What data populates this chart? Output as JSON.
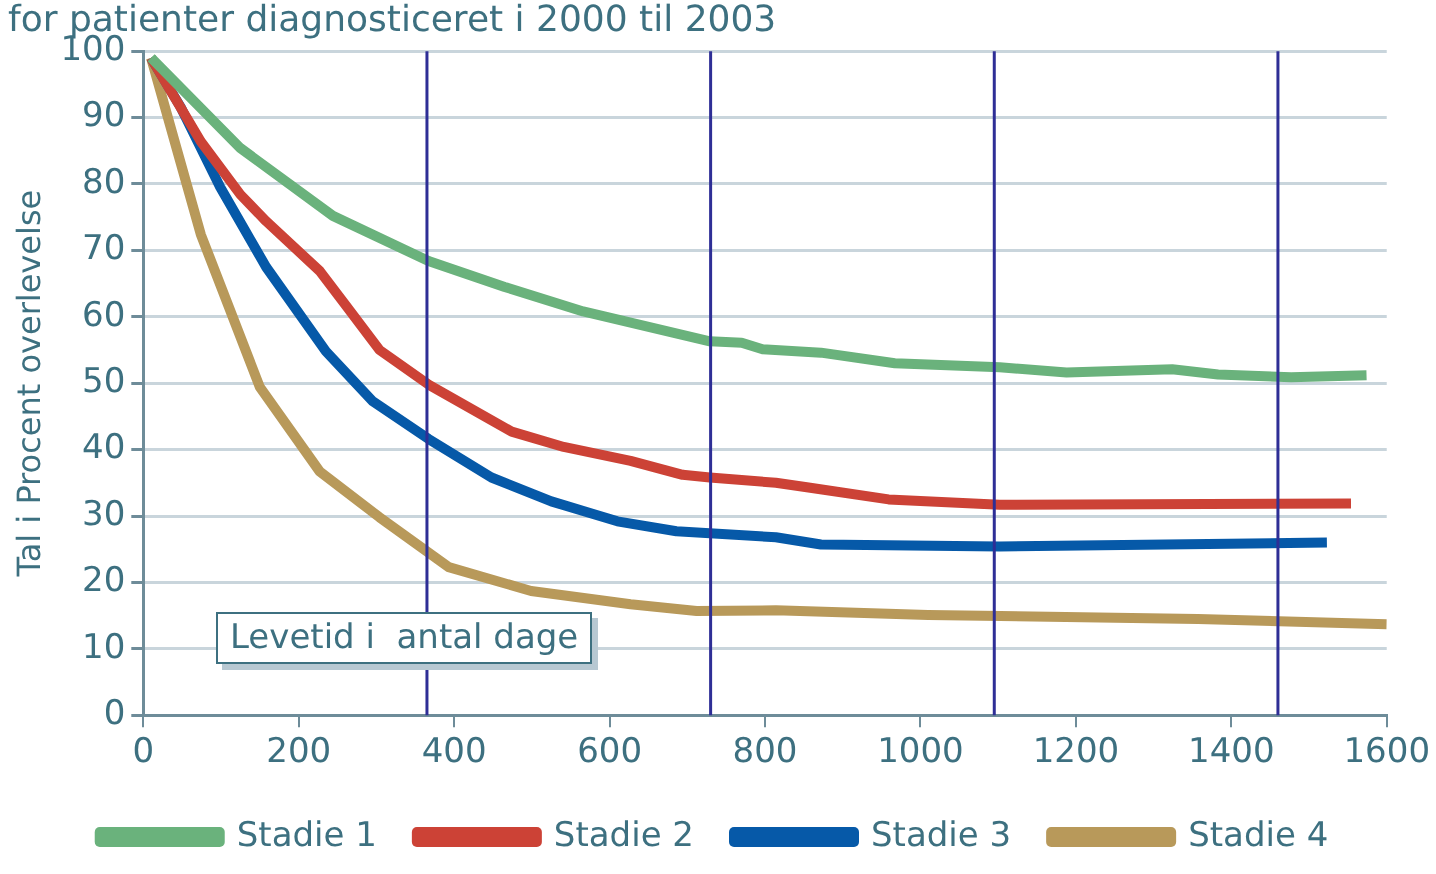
{
  "chart_data": {
    "type": "line",
    "title": "for patienter diagnosticeret i 2000 til 2003",
    "xlabel": "Levetid i  antal dage",
    "ylabel": "Tal i Procent overlevelse",
    "xlim": [
      0,
      1600
    ],
    "xticks": [
      0,
      200,
      400,
      600,
      800,
      1000,
      1200,
      1400,
      1600
    ],
    "ylim": [
      0,
      100
    ],
    "yticks": [
      0,
      10,
      20,
      30,
      40,
      50,
      60,
      70,
      80,
      90,
      100
    ],
    "grid": "y",
    "legend": "bottom",
    "marker": "none",
    "line_style": "solid",
    "ref_lines": [
      {
        "axis": "x",
        "value": 365,
        "color": "#2e2e96"
      },
      {
        "axis": "x",
        "value": 730,
        "color": "#2e2e96"
      },
      {
        "axis": "x",
        "value": 1095,
        "color": "#2e2e96"
      },
      {
        "axis": "x",
        "value": 1460,
        "color": "#2e2e96"
      }
    ],
    "series": [
      {
        "name": "Stadie 1",
        "color": "#6ab27c",
        "x": [
          10,
          125,
          244,
          367,
          465,
          566,
          729,
          770,
          797,
          872,
          967,
          1102,
          1188,
          1324,
          1383,
          1477,
          1574
        ],
        "values": [
          99,
          85.4,
          75.2,
          68.4,
          64.5,
          60.8,
          56.3,
          56.1,
          55.1,
          54.6,
          53,
          52.4,
          51.6,
          52.1,
          51.3,
          50.9,
          51.2
        ]
      },
      {
        "name": "Stadie 2",
        "color": "#cc4236",
        "x": [
          10,
          74,
          125,
          158,
          227,
          260,
          304,
          367,
          474,
          541,
          627,
          694,
          729,
          814,
          856,
          959,
          1102,
          1554
        ],
        "values": [
          99,
          86.4,
          78.4,
          74.4,
          66.9,
          61.8,
          55,
          49.8,
          42.7,
          40.4,
          38.3,
          36.2,
          35.8,
          35,
          34.3,
          32.5,
          31.7,
          31.9
        ]
      },
      {
        "name": "Stadie 3",
        "color": "#0659a8",
        "x": [
          10,
          48,
          99,
          158,
          235,
          295,
          367,
          448,
          525,
          610,
          686,
          814,
          872,
          1102,
          1523
        ],
        "values": [
          99,
          91.6,
          79.5,
          67.5,
          54.8,
          47.3,
          41.6,
          35.8,
          32.2,
          29.2,
          27.7,
          26.8,
          25.7,
          25.4,
          26
        ]
      },
      {
        "name": "Stadie 4",
        "color": "#b8995a",
        "x": [
          10,
          74,
          150,
          227,
          304,
          393,
          499,
          627,
          712,
          814,
          1010,
          1357,
          1600
        ],
        "values": [
          99,
          72.4,
          49.4,
          36.7,
          29.8,
          22.3,
          18.7,
          16.7,
          15.7,
          15.8,
          15.1,
          14.5,
          13.7
        ]
      }
    ]
  }
}
